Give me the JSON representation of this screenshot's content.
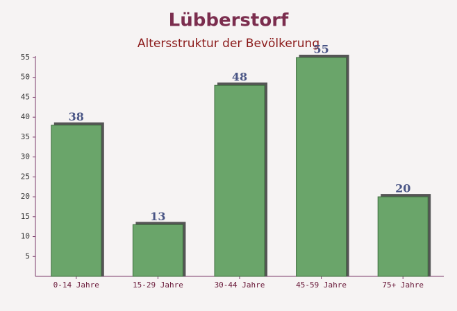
{
  "chart_data": {
    "type": "bar",
    "title": "Lübberstorf",
    "subtitle": "Altersstruktur der Bevölkerung",
    "categories": [
      "0-14 Jahre",
      "15-29 Jahre",
      "30-44 Jahre",
      "45-59 Jahre",
      "75+ Jahre"
    ],
    "values": [
      38,
      13,
      48,
      55,
      20
    ],
    "color": "#6aa56a",
    "ylim": [
      0,
      55
    ],
    "yticks": [
      5,
      10,
      15,
      20,
      25,
      30,
      35,
      40,
      45,
      50,
      55
    ]
  }
}
